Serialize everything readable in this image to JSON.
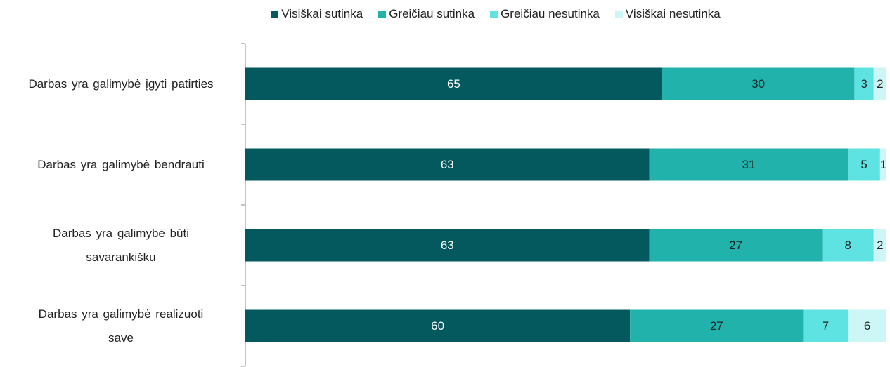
{
  "chart_data": {
    "type": "stacked-bar-horizontal",
    "categories": [
      "Darbas yra galimybė įgyti patirties",
      "Darbas yra galimybė bendrauti",
      "Darbas yra galimybė būti savarankišku",
      "Darbas yra galimybė realizuoti save"
    ],
    "series": [
      {
        "name": "Visiškai sutinka",
        "color": "#03595d",
        "values": [
          65,
          63,
          63,
          60
        ]
      },
      {
        "name": "Greičiau sutinka",
        "color": "#20b2ab",
        "values": [
          30,
          31,
          27,
          27
        ]
      },
      {
        "name": "Greičiau nesutinka",
        "color": "#5fe2e2",
        "values": [
          3,
          5,
          8,
          7
        ]
      },
      {
        "name": "Visiškai nesutinka",
        "color": "#cdf6f6",
        "values": [
          2,
          1,
          2,
          6
        ]
      }
    ],
    "xlim": [
      0,
      100
    ],
    "legend": "top"
  }
}
